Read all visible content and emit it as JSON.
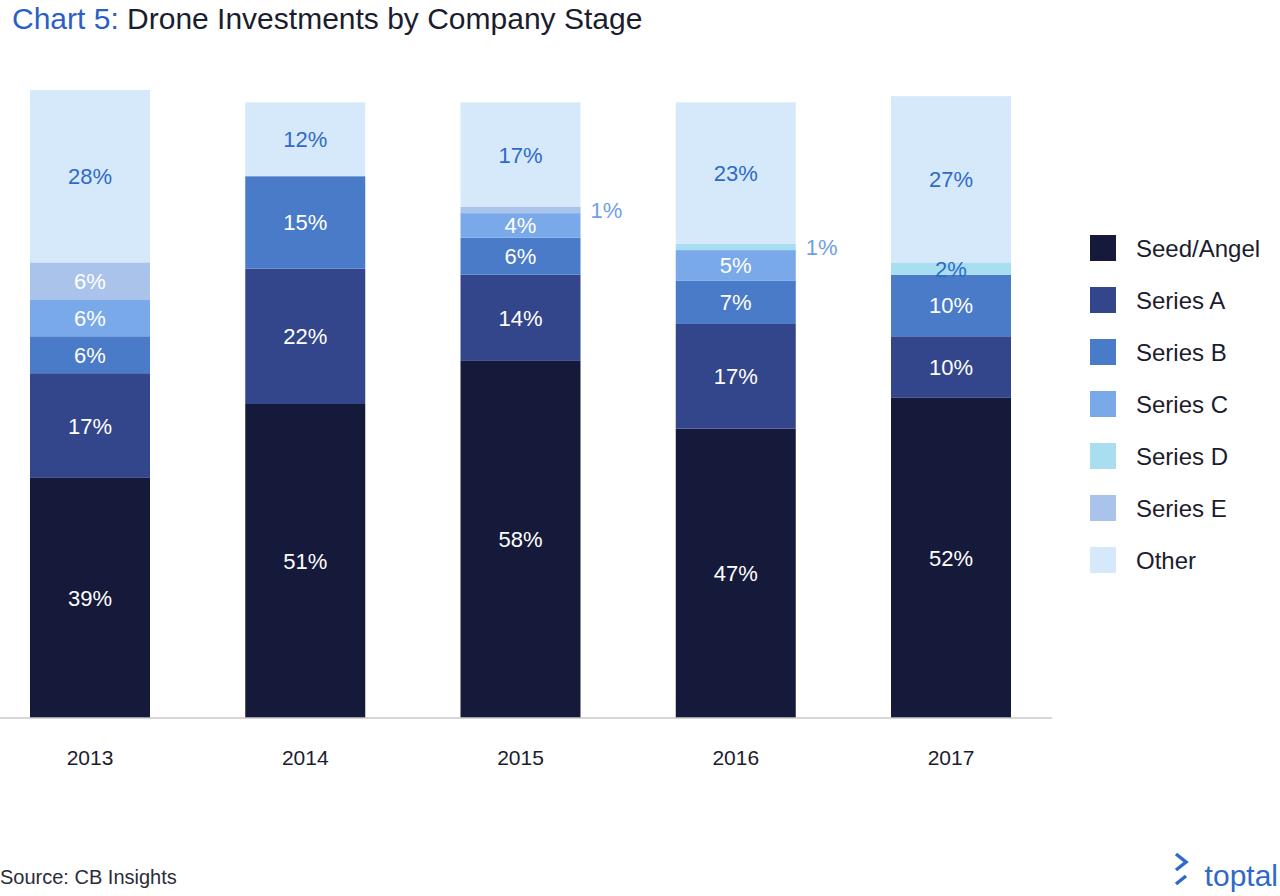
{
  "chart_data": {
    "type": "bar",
    "title": "Chart 5: Drone Investments by Company Stage",
    "source": "Source: CB Insights",
    "logo": "toptal",
    "stacked": true,
    "data_labels": true,
    "tick_labels": "x",
    "legend": "right",
    "categories": [
      "2013",
      "2014",
      "2015",
      "2016",
      "2017"
    ],
    "ylim": [
      0,
      102
    ],
    "series": [
      {
        "name": "Seed/Angel",
        "color": "#161a3a",
        "values": [
          39,
          51,
          58,
          47,
          52
        ],
        "value_labels": [
          "39%",
          "51%",
          "58%",
          "47%",
          "52%"
        ]
      },
      {
        "name": "Series A",
        "color": "#34468b",
        "values": [
          17,
          22,
          14,
          17,
          10
        ],
        "value_labels": [
          "17%",
          "22%",
          "14%",
          "17%",
          "10%"
        ]
      },
      {
        "name": "Series B",
        "color": "#4a7bc8",
        "values": [
          6,
          15,
          6,
          7,
          10
        ],
        "value_labels": [
          "6%",
          "15%",
          "6%",
          "7%",
          "10%"
        ]
      },
      {
        "name": "Series C",
        "color": "#7aa9ea",
        "values": [
          6,
          null,
          4,
          5,
          null
        ],
        "value_labels": [
          "6%",
          null,
          "4%",
          "5%",
          null
        ]
      },
      {
        "name": "Series D",
        "color": "#a8def0",
        "values": [
          null,
          null,
          null,
          1,
          2
        ],
        "value_labels": [
          null,
          null,
          null,
          "1%",
          "2%"
        ]
      },
      {
        "name": "Series E",
        "color": "#a9c3ea",
        "values": [
          6,
          null,
          1,
          null,
          null
        ],
        "value_labels": [
          "6%",
          null,
          "1%",
          null,
          null
        ]
      },
      {
        "name": "Other",
        "color": "#d5e9fb",
        "values": [
          28,
          12,
          17,
          23,
          27
        ],
        "value_labels": [
          "28%",
          "12%",
          "17%",
          "23%",
          "27%"
        ]
      }
    ]
  }
}
